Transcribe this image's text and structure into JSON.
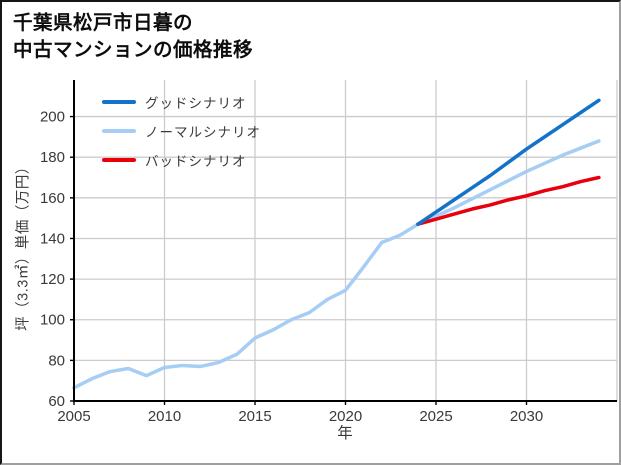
{
  "title": {
    "line1": "千葉県松戸市日暮の",
    "line2": "中古マンションの価格推移"
  },
  "colors": {
    "good_scenario": "#1273c8",
    "normal_scenario": "#a6cdf4",
    "bad_scenario": "#e8000d",
    "gridline": "#cccccc",
    "axis_spine": "#000000",
    "tick_label": "#3a3a3a"
  },
  "chart_data": {
    "type": "line",
    "title": "千葉県松戸市日暮の中古マンションの価格推移",
    "xlabel": "年",
    "ylabel": "坪（3.3㎡）単価（万円）",
    "xlim": [
      2005,
      2035
    ],
    "ylim": [
      60,
      218
    ],
    "x_ticks": [
      2005,
      2010,
      2015,
      2020,
      2025,
      2030
    ],
    "x_grid_extra": [
      2035
    ],
    "y_ticks": [
      60,
      80,
      100,
      120,
      140,
      160,
      180,
      200
    ],
    "grid": true,
    "legend_position": "upper-left",
    "series": [
      {
        "id": "good",
        "name": "グッドシナリオ",
        "color": "#1273c8",
        "x": [
          2024,
          2025,
          2026,
          2027,
          2028,
          2029,
          2030,
          2031,
          2032,
          2033,
          2034
        ],
        "values": [
          147,
          153,
          159,
          165,
          171,
          177.5,
          184,
          190,
          196,
          202,
          208
        ]
      },
      {
        "id": "normal",
        "name": "ノーマルシナリオ",
        "color": "#a6cdf4",
        "x": [
          2005,
          2006,
          2007,
          2008,
          2009,
          2010,
          2011,
          2012,
          2013,
          2014,
          2015,
          2016,
          2017,
          2018,
          2019,
          2020,
          2021,
          2022,
          2023,
          2024,
          2025,
          2026,
          2027,
          2028,
          2029,
          2030,
          2031,
          2032,
          2033,
          2034
        ],
        "values": [
          66.5,
          71,
          74.5,
          76,
          72.5,
          76.5,
          77.5,
          77,
          79,
          83,
          91,
          95,
          100,
          103.5,
          110,
          114.5,
          126,
          138,
          141.5,
          147,
          151,
          155,
          159.5,
          164,
          168.5,
          173,
          177,
          181,
          184.5,
          188
        ]
      },
      {
        "id": "bad",
        "name": "バッドシナリオ",
        "color": "#e8000d",
        "x": [
          2024,
          2025,
          2026,
          2027,
          2028,
          2029,
          2030,
          2031,
          2032,
          2033,
          2034
        ],
        "values": [
          147,
          149.5,
          152,
          154.5,
          156.5,
          159,
          161,
          163.5,
          165.5,
          168,
          170
        ]
      }
    ]
  }
}
